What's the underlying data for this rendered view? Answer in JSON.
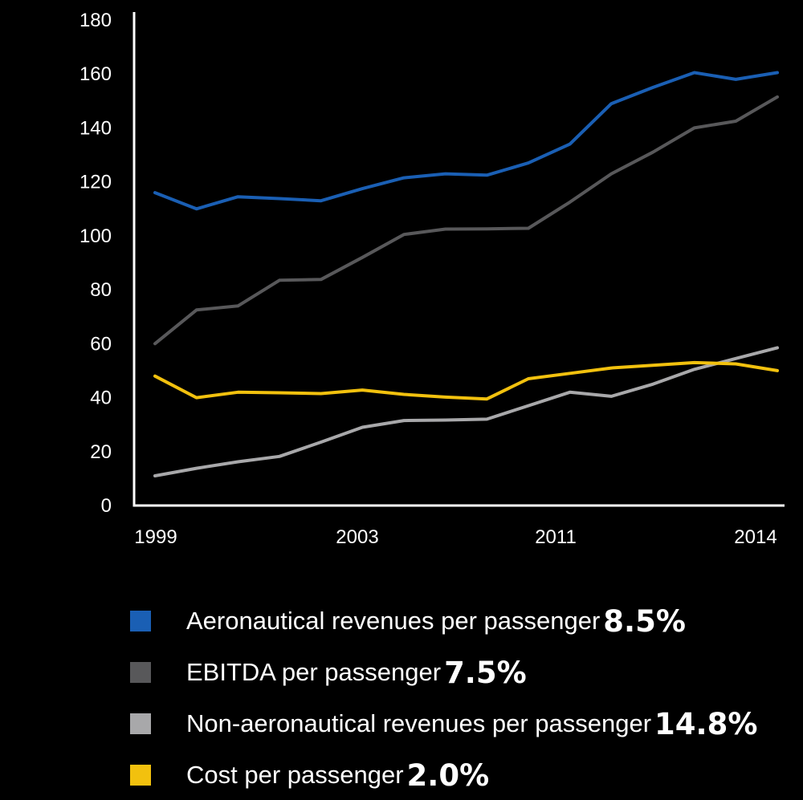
{
  "chart_data": {
    "type": "line",
    "x": [
      1999,
      2000,
      2001,
      2002,
      2003,
      2004,
      2005,
      2006,
      2007,
      2008,
      2009,
      2010,
      2011,
      2012,
      2013,
      2014
    ],
    "x_tick_labels": [
      "1999",
      "2003",
      "2011",
      "2014"
    ],
    "y_ticks": [
      0,
      20,
      40,
      60,
      80,
      100,
      120,
      140,
      160,
      180
    ],
    "ylim": [
      0,
      180
    ],
    "title": "",
    "xlabel": "",
    "ylabel": "",
    "grid": false,
    "legend_position": "bottom",
    "series": [
      {
        "name": "Aeronautical revenues per passenger",
        "growth": "8.5%",
        "color": "#1a5fb4",
        "values": [
          116,
          110,
          114.5,
          113.8,
          113,
          117.5,
          121.5,
          123,
          122.5,
          127,
          134,
          149,
          155,
          160.5,
          158,
          160.5
        ]
      },
      {
        "name": "EBITDA per passenger",
        "growth": "7.5%",
        "color": "#58585a",
        "values": [
          60,
          72.5,
          74,
          83.5,
          83.8,
          92,
          100.5,
          102.5,
          102.6,
          102.8,
          112.5,
          123,
          131,
          140,
          142.5,
          151.5
        ]
      },
      {
        "name": "Non-aeronautical revenues per passenger",
        "growth": "14.8%",
        "color": "#a8a8aa",
        "values": [
          11,
          13.8,
          16.2,
          18.2,
          23.5,
          29,
          31.5,
          31.7,
          32,
          37,
          42,
          40.5,
          45,
          50.5,
          54.5,
          58.5
        ]
      },
      {
        "name": "Cost per passenger",
        "growth": "2.0%",
        "color": "#f2c10e",
        "values": [
          48,
          40,
          42,
          41.8,
          41.5,
          42.8,
          41.2,
          40.2,
          39.5,
          47,
          49,
          51,
          52,
          53,
          52.5,
          50
        ]
      }
    ]
  }
}
